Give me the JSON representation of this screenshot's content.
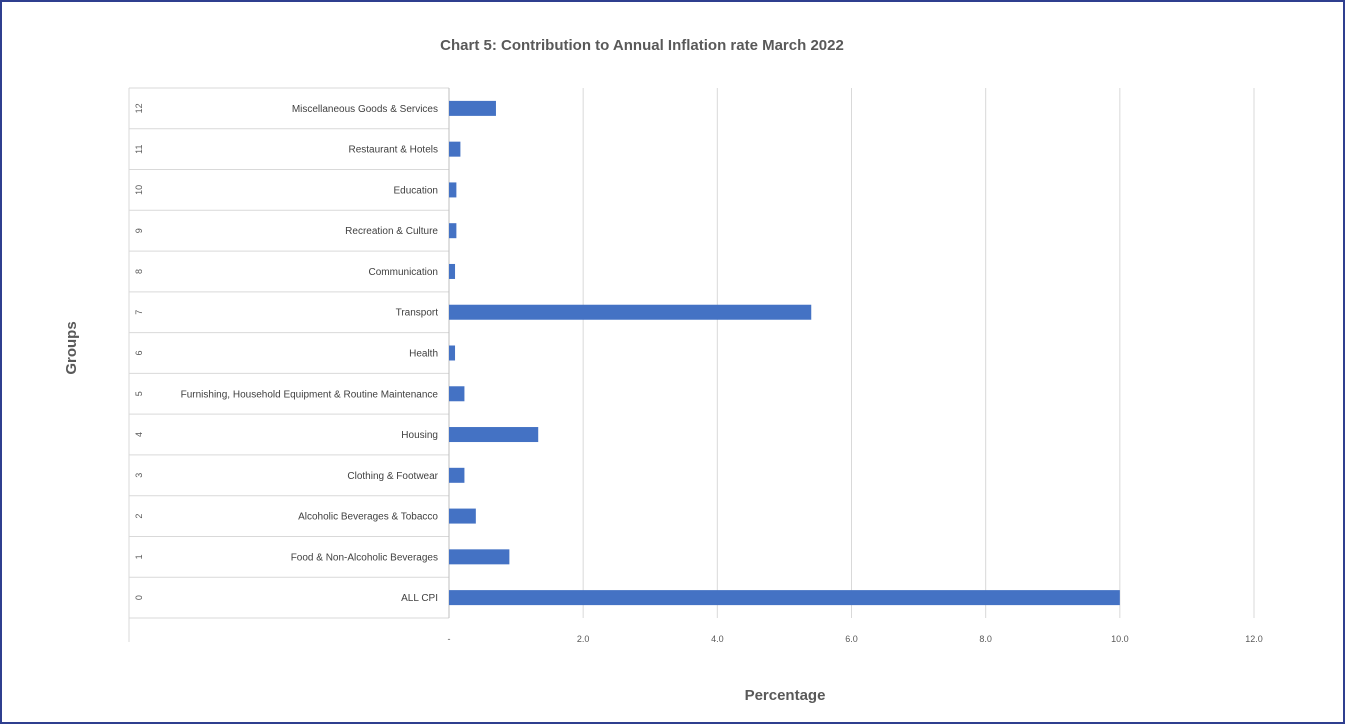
{
  "chart_data": {
    "type": "bar",
    "orientation": "horizontal",
    "title": "Chart 5: Contribution to Annual  Inflation rate March 2022",
    "xlabel": "Percentage",
    "ylabel": "Groups",
    "xlim": [
      0,
      12
    ],
    "xticks": [
      0,
      2,
      4,
      6,
      8,
      10,
      12
    ],
    "xtick_labels": [
      "-",
      "2.0",
      "4.0",
      "6.0",
      "8.0",
      "10.0",
      "12.0"
    ],
    "grid": true,
    "bar_color": "#4472c4",
    "categories": [
      {
        "index": "0",
        "name": "ALL CPI"
      },
      {
        "index": "1",
        "name": "Food & Non-Alcoholic Beverages"
      },
      {
        "index": "2",
        "name": "Alcoholic Beverages & Tobacco"
      },
      {
        "index": "3",
        "name": "Clothing & Footwear"
      },
      {
        "index": "4",
        "name": "Housing"
      },
      {
        "index": "5",
        "name": "Furnishing, Household Equipment & Routine Maintenance"
      },
      {
        "index": "6",
        "name": "Health"
      },
      {
        "index": "7",
        "name": "Transport"
      },
      {
        "index": "8",
        "name": "Communication"
      },
      {
        "index": "9",
        "name": "Recreation & Culture"
      },
      {
        "index": "10",
        "name": "Education"
      },
      {
        "index": "11",
        "name": "Restaurant & Hotels"
      },
      {
        "index": "12",
        "name": "Miscellaneous Goods & Services"
      }
    ],
    "values": [
      10.0,
      0.9,
      0.4,
      0.23,
      1.33,
      0.23,
      0.09,
      5.4,
      0.09,
      0.11,
      0.11,
      0.17,
      0.7
    ]
  }
}
